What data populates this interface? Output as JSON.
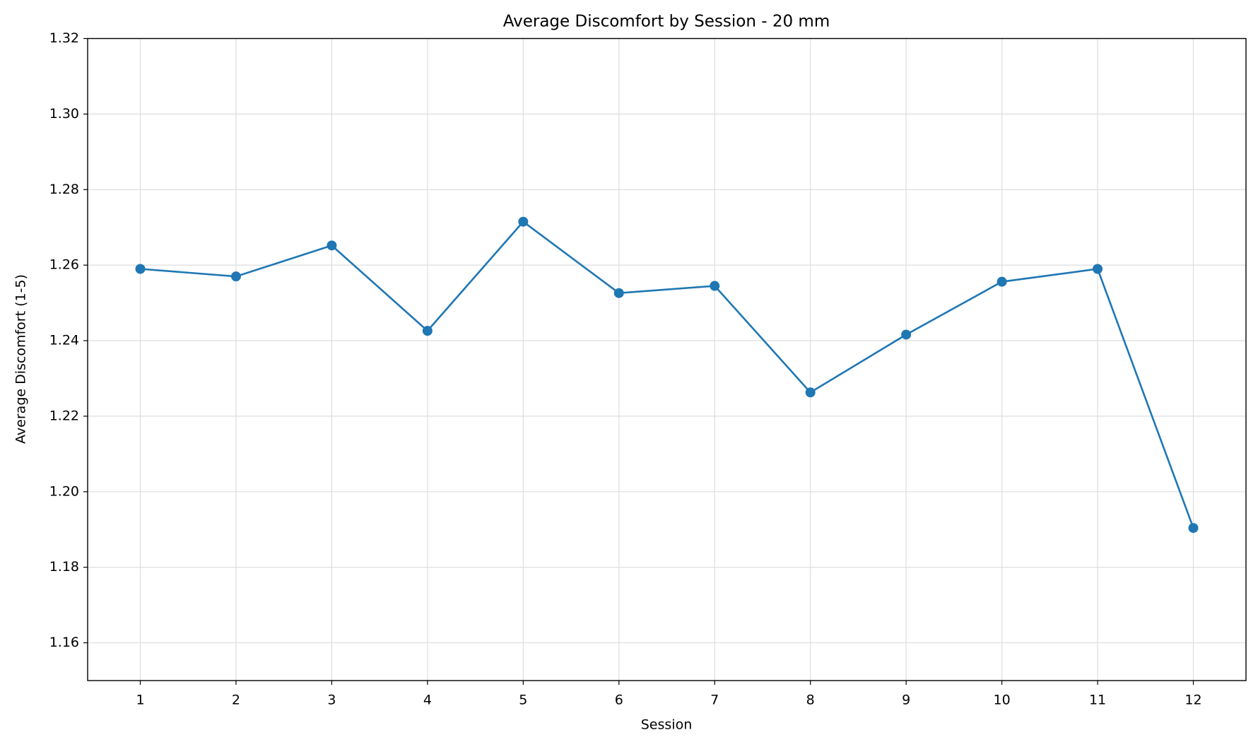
{
  "chart_data": {
    "type": "line",
    "title": "Average Discomfort by Session - 20 mm",
    "xlabel": "Session",
    "ylabel": "Average Discomfort (1-5)",
    "x": [
      1,
      2,
      3,
      4,
      5,
      6,
      7,
      8,
      9,
      10,
      11,
      12
    ],
    "series": [
      {
        "name": "Average Discomfort",
        "color": "#1f77b4",
        "values": [
          1.259,
          1.257,
          1.2652,
          1.2426,
          1.2715,
          1.2526,
          1.2545,
          1.2263,
          1.2416,
          1.2556,
          1.259,
          1.1904
        ]
      }
    ],
    "xlim": [
      0.45,
      12.55
    ],
    "xticks": [
      1,
      2,
      3,
      4,
      5,
      6,
      7,
      8,
      9,
      10,
      11,
      12
    ],
    "ylim": [
      1.15,
      1.32
    ],
    "yticks": [
      1.16,
      1.18,
      {
        "value": 1.2,
        "label": "1.20"
      },
      1.22,
      1.24,
      1.26,
      1.28,
      {
        "value": 1.3,
        "label": "1.30"
      },
      {
        "value": 1.32,
        "label": "1.32"
      }
    ],
    "grid": true,
    "markers": true
  }
}
